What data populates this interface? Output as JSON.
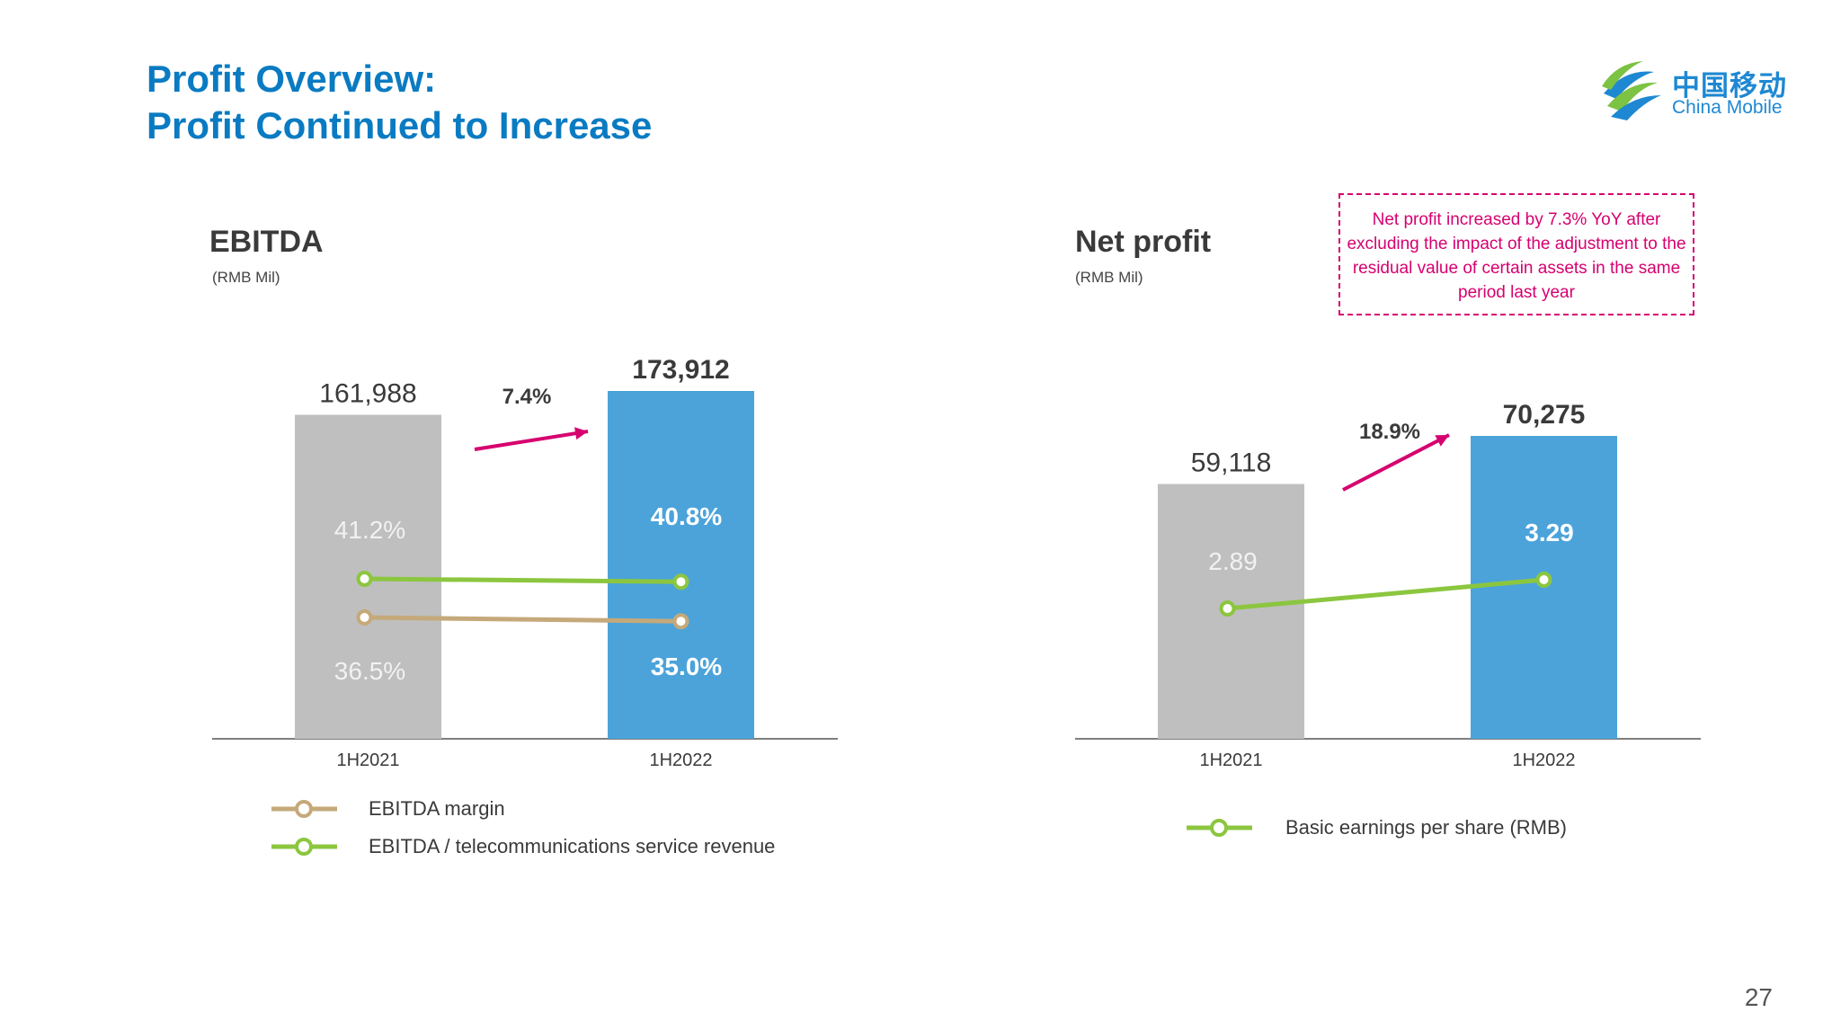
{
  "title": {
    "line1": "Profit Overview:",
    "line2": "Profit Continued to Increase"
  },
  "logo": {
    "cn": "中国移动",
    "en": "China Mobile",
    "colors": [
      "#1E88D2",
      "#7CC243"
    ]
  },
  "page_number": "27",
  "note": "Net profit increased by 7.3% YoY after excluding the impact of the adjustment to the residual value of certain assets in the same period last year",
  "colors": {
    "title": "#0A7BC2",
    "bar_prior": "#BFBFBF",
    "bar_current": "#4BA3DA",
    "arrow": "#D6006F",
    "line_margin": "#C5A97A",
    "line_service": "#8CC63F",
    "note": "#D6006F"
  },
  "chart_data": [
    {
      "type": "bar",
      "title": "EBITDA",
      "unit": "(RMB Mil)",
      "categories": [
        "1H2021",
        "1H2022"
      ],
      "values": [
        161988,
        173912
      ],
      "value_labels": [
        "161,988",
        "173,912"
      ],
      "growth_label": "7.4%",
      "lines": [
        {
          "name": "EBITDA margin",
          "values": [
            36.5,
            35.0
          ],
          "labels": [
            "36.5%",
            "35.0%"
          ],
          "color": "#C5A97A"
        },
        {
          "name": "EBITDA / telecommunications service revenue",
          "values": [
            41.2,
            40.8
          ],
          "labels": [
            "41.2%",
            "40.8%"
          ],
          "color": "#8CC63F"
        }
      ],
      "legend_position": "bottom-left"
    },
    {
      "type": "bar",
      "title": "Net profit",
      "unit": "(RMB Mil)",
      "categories": [
        "1H2021",
        "1H2022"
      ],
      "values": [
        59118,
        70275
      ],
      "value_labels": [
        "59,118",
        "70,275"
      ],
      "growth_label": "18.9%",
      "lines": [
        {
          "name": "Basic earnings per share (RMB)",
          "values": [
            2.89,
            3.29
          ],
          "labels": [
            "2.89",
            "3.29"
          ],
          "color": "#8CC63F"
        }
      ],
      "legend_position": "bottom-center"
    }
  ]
}
